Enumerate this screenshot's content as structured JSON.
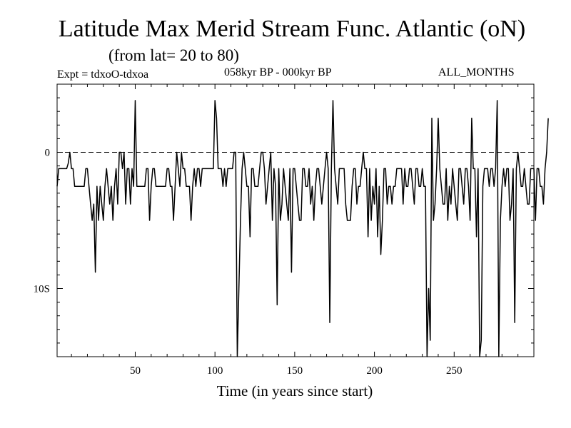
{
  "header": {
    "title": "Latitude Max Merid Stream Func. Atlantic (oN)",
    "subtitle": "(from lat= 20 to 80)",
    "expt": "Expt = tdxoO-tdxoa",
    "period": "058kyr BP - 000kyr BP",
    "months": "ALL_MONTHS"
  },
  "chart_data": {
    "type": "line",
    "title": "Latitude Max Merid Stream Func. Atlantic (oN)",
    "subtitle": "(from lat= 20 to 80)",
    "xlabel": "Time (in years since start)",
    "ylabel": "",
    "xlim": [
      1,
      300
    ],
    "ylim": [
      -15,
      5
    ],
    "x_ticks": [
      50,
      100,
      150,
      200,
      250
    ],
    "y_ticks": [
      {
        "value": 0,
        "label": "0"
      },
      {
        "value": -10,
        "label": "10S"
      }
    ],
    "zero_line": "dashed",
    "grid": false,
    "series": [
      {
        "x_start": 1,
        "x_step": 1,
        "values": [
          -2.5,
          -1.2,
          -1.2,
          -1.2,
          -1.2,
          -1.2,
          -1.2,
          -0.8,
          0,
          -1.2,
          -1.2,
          -2.5,
          -2.5,
          -2.5,
          -2.5,
          -2.5,
          -2.5,
          -2.5,
          -1.2,
          -1.2,
          -2.5,
          -3.8,
          -5,
          -3.8,
          -8.8,
          -2.5,
          -5,
          -2.5,
          -3.8,
          -5,
          -2.5,
          -1.2,
          -2.5,
          -3.8,
          -2.5,
          -5,
          -2.5,
          -1.2,
          -3.8,
          0,
          0,
          -1.2,
          0,
          -3.8,
          -1.2,
          -1.2,
          -3.8,
          -1.2,
          -2.5,
          3.8,
          -2.5,
          -2.5,
          -2.5,
          -2.5,
          -2.5,
          -2.5,
          -1.2,
          -1.2,
          -5,
          -2.5,
          -1.2,
          -1.2,
          -2.5,
          -2.5,
          -2.5,
          -2.5,
          -2.5,
          -2.5,
          -2.5,
          -1.2,
          -1.2,
          -2.5,
          -2.5,
          -5,
          -2.5,
          0,
          -1.2,
          -2.5,
          0,
          -1.2,
          -1.2,
          -2.5,
          -2.5,
          -2.5,
          -5,
          -2.5,
          -1.2,
          -2.5,
          -1.2,
          -1.2,
          -2.5,
          -1.2,
          -1.2,
          -1.2,
          -1.2,
          -1.2,
          -1.2,
          -1.2,
          -1.2,
          3.8,
          2.5,
          -1.2,
          -1.2,
          -1.2,
          -2.5,
          -1.2,
          -2.5,
          -1.2,
          -1.2,
          -1.2,
          -1.2,
          0,
          0,
          -15,
          -10,
          -5,
          -1.2,
          0,
          -1.2,
          -2.5,
          -2.5,
          -6.2,
          -1.2,
          -1.2,
          -2.5,
          -2.5,
          -2.5,
          -1.2,
          0,
          0,
          -1.2,
          -3.8,
          -2.5,
          -1.2,
          0,
          -5,
          -1.2,
          -2.5,
          -11.2,
          -1.2,
          -5,
          -3.8,
          -1.2,
          -2.5,
          -3.8,
          -5,
          -1.2,
          -8.8,
          -1.2,
          -1.2,
          -2.5,
          -3.8,
          -5,
          -5,
          -1.2,
          -1.2,
          -2.5,
          -2.5,
          -1.2,
          -3.8,
          -2.5,
          -5,
          -2.5,
          -1.2,
          -1.2,
          -2.5,
          -3.8,
          -2.5,
          -1.2,
          0,
          -1.2,
          -12.5,
          -1.2,
          3.8,
          -1.2,
          -2.5,
          -3.8,
          -1.2,
          -1.2,
          -1.2,
          -1.2,
          -3.8,
          -5,
          -5,
          -5,
          -2.5,
          -1.2,
          -1.2,
          -3.8,
          -2.5,
          -2.5,
          -1.2,
          0,
          -1.2,
          -1.2,
          -6.2,
          -1.2,
          -5,
          -2.5,
          -3.8,
          -1.2,
          -6.2,
          -2.5,
          -7.5,
          -5,
          -1.2,
          -1.2,
          -3.8,
          -2.5,
          -2.5,
          -3.8,
          -2.5,
          -2.5,
          -1.2,
          -1.2,
          -1.2,
          -1.2,
          -3.8,
          -1.2,
          -2.5,
          -2.5,
          -1.2,
          -1.2,
          -2.5,
          -3.8,
          -1.2,
          -1.2,
          -2.5,
          -2.5,
          -1.2,
          -2.5,
          -2.5,
          -15,
          -10,
          -13.8,
          2.5,
          -5,
          -3.8,
          -1.2,
          2.5,
          -1.2,
          -2.5,
          -3.8,
          -3.8,
          -1.2,
          -5,
          -2.5,
          -3.8,
          -1.2,
          -2.5,
          -3.8,
          -5,
          -1.2,
          -1.2,
          -2.5,
          -3.8,
          -1.2,
          -1.2,
          -2.5,
          -5,
          2.5,
          -1.2,
          -1.2,
          -6.2,
          -1.2,
          -16.2,
          -13.8,
          -2.5,
          -1.2,
          -1.2,
          -1.2,
          -2.5,
          -1.2,
          -1.2,
          -2.5,
          -1.2,
          3.8,
          -15,
          -5,
          -2.5,
          -1.2,
          -2.5,
          -1.2,
          -1.2,
          -5,
          -3.8,
          -1.2,
          -12.5,
          -1.2,
          0,
          -1.2,
          -2.5,
          -2.5,
          -1.2,
          -2.5,
          -3.8,
          -3.8,
          -1.2,
          -1.2,
          -1.2,
          -5,
          -1.2,
          -1.2,
          -2.5,
          -2.5,
          -3.8,
          -1.2,
          0,
          2.5
        ]
      }
    ]
  }
}
